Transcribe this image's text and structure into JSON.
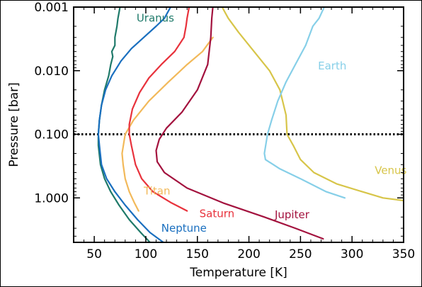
{
  "chart_data": {
    "type": "line",
    "xlabel": "Temperature [K]",
    "ylabel": "Pressure [bar]",
    "xlim": [
      30,
      350
    ],
    "ylim": [
      5.0,
      0.001
    ],
    "y_scale": "log",
    "y_inverted": true,
    "x_ticks": [
      50,
      100,
      150,
      200,
      250,
      300,
      350
    ],
    "y_ticks": [
      {
        "value": 0.001,
        "label": "0.001"
      },
      {
        "value": 0.01,
        "label": "0.010"
      },
      {
        "value": 0.1,
        "label": "0.100"
      },
      {
        "value": 1.0,
        "label": "1.000"
      }
    ],
    "reference_line": {
      "pressure": 0.1,
      "style": "dotted",
      "color": "#000000"
    },
    "series": [
      {
        "name": "Uranus",
        "color": "#1f7a6a",
        "points": [
          [
            75,
            0.001
          ],
          [
            73,
            0.0015
          ],
          [
            72,
            0.002
          ],
          [
            70,
            0.003
          ],
          [
            70,
            0.004
          ],
          [
            67,
            0.005
          ],
          [
            68,
            0.006
          ],
          [
            66,
            0.008
          ],
          [
            64,
            0.012
          ],
          [
            60,
            0.02
          ],
          [
            57,
            0.035
          ],
          [
            55,
            0.06
          ],
          [
            54,
            0.1
          ],
          [
            54,
            0.15
          ],
          [
            56,
            0.3
          ],
          [
            60,
            0.5
          ],
          [
            66,
            0.8
          ],
          [
            74,
            1.3
          ],
          [
            84,
            2.2
          ],
          [
            95,
            3.5
          ],
          [
            104,
            5.0
          ]
        ]
      },
      {
        "name": "Neptune",
        "color": "#1a6fbf",
        "points": [
          [
            124,
            0.001
          ],
          [
            118,
            0.0015
          ],
          [
            110,
            0.002
          ],
          [
            98,
            0.003
          ],
          [
            86,
            0.0045
          ],
          [
            76,
            0.007
          ],
          [
            67,
            0.012
          ],
          [
            61,
            0.02
          ],
          [
            57,
            0.035
          ],
          [
            55,
            0.06
          ],
          [
            54,
            0.1
          ],
          [
            55,
            0.15
          ],
          [
            57,
            0.3
          ],
          [
            62,
            0.5
          ],
          [
            70,
            0.8
          ],
          [
            80,
            1.3
          ],
          [
            92,
            2.2
          ],
          [
            104,
            3.5
          ],
          [
            117,
            5.0
          ]
        ]
      },
      {
        "name": "Titan",
        "color": "#f2b95a",
        "points": [
          [
            165,
            0.003
          ],
          [
            155,
            0.005
          ],
          [
            140,
            0.008
          ],
          [
            122,
            0.015
          ],
          [
            103,
            0.03
          ],
          [
            88,
            0.06
          ],
          [
            80,
            0.1
          ],
          [
            77,
            0.2
          ],
          [
            78,
            0.3
          ],
          [
            80,
            0.5
          ],
          [
            84,
            0.8
          ],
          [
            89,
            1.2
          ],
          [
            93,
            1.6
          ]
        ]
      },
      {
        "name": "Saturn",
        "color": "#e8323c",
        "points": [
          [
            142,
            0.001
          ],
          [
            140,
            0.0015
          ],
          [
            139,
            0.002
          ],
          [
            137,
            0.003
          ],
          [
            128,
            0.005
          ],
          [
            115,
            0.008
          ],
          [
            103,
            0.013
          ],
          [
            94,
            0.022
          ],
          [
            87,
            0.04
          ],
          [
            84,
            0.07
          ],
          [
            84,
            0.1
          ],
          [
            86,
            0.15
          ],
          [
            90,
            0.3
          ],
          [
            96,
            0.5
          ],
          [
            107,
            0.8
          ],
          [
            125,
            1.2
          ],
          [
            140,
            1.6
          ]
        ]
      },
      {
        "name": "Jupiter",
        "color": "#a3123e",
        "points": [
          [
            165,
            0.001
          ],
          [
            164,
            0.0015
          ],
          [
            163,
            0.003
          ],
          [
            160,
            0.008
          ],
          [
            150,
            0.02
          ],
          [
            135,
            0.045
          ],
          [
            120,
            0.08
          ],
          [
            113,
            0.12
          ],
          [
            110,
            0.18
          ],
          [
            111,
            0.27
          ],
          [
            118,
            0.4
          ],
          [
            140,
            0.7
          ],
          [
            175,
            1.2
          ],
          [
            215,
            2.0
          ],
          [
            245,
            3.0
          ],
          [
            272,
            4.4
          ]
        ]
      },
      {
        "name": "Venus",
        "color": "#d7c549",
        "points": [
          [
            174,
            0.001
          ],
          [
            180,
            0.0015
          ],
          [
            190,
            0.0025
          ],
          [
            205,
            0.005
          ],
          [
            220,
            0.01
          ],
          [
            230,
            0.02
          ],
          [
            236,
            0.05
          ],
          [
            237,
            0.1
          ],
          [
            243,
            0.15
          ],
          [
            250,
            0.25
          ],
          [
            263,
            0.4
          ],
          [
            285,
            0.6
          ],
          [
            310,
            0.8
          ],
          [
            330,
            1.0
          ],
          [
            350,
            1.1
          ]
        ]
      },
      {
        "name": "Earth",
        "color": "#86cfe8",
        "points": [
          [
            273,
            0.001
          ],
          [
            268,
            0.0015
          ],
          [
            262,
            0.002
          ],
          [
            255,
            0.004
          ],
          [
            245,
            0.008
          ],
          [
            236,
            0.015
          ],
          [
            228,
            0.03
          ],
          [
            222,
            0.06
          ],
          [
            218,
            0.1
          ],
          [
            215,
            0.2
          ],
          [
            216,
            0.25
          ],
          [
            230,
            0.35
          ],
          [
            250,
            0.5
          ],
          [
            275,
            0.8
          ],
          [
            293,
            1.0
          ]
        ]
      }
    ],
    "labels": [
      {
        "text": "Uranus",
        "series": "Uranus",
        "x": 91,
        "p": 0.0017
      },
      {
        "text": "Earth",
        "series": "Earth",
        "x": 267,
        "p": 0.0095
      },
      {
        "text": "Venus",
        "series": "Venus",
        "x": 322,
        "p": 0.42
      },
      {
        "text": "Titan",
        "series": "Titan",
        "x": 98,
        "p": 0.88
      },
      {
        "text": "Saturn",
        "series": "Saturn",
        "x": 152,
        "p": 2.0
      },
      {
        "text": "Jupiter",
        "series": "Jupiter",
        "x": 225,
        "p": 2.1
      },
      {
        "text": "Neptune",
        "series": "Neptune",
        "x": 115,
        "p": 3.4
      }
    ]
  }
}
